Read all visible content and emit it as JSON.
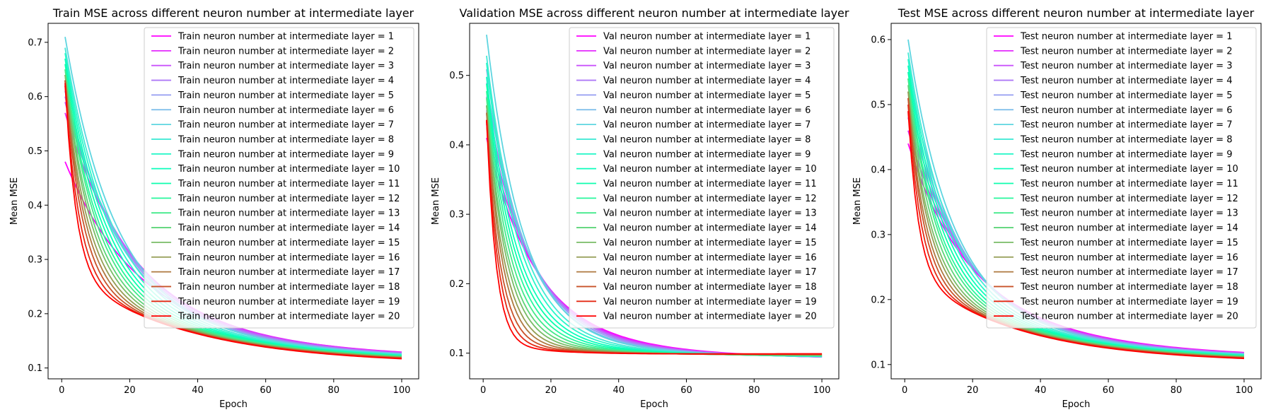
{
  "chart_data": [
    {
      "type": "line",
      "title": "Train MSE across different neuron number at intermediate layer",
      "xlabel": "Epoch",
      "ylabel": "Mean MSE",
      "xlim": [
        -4,
        105
      ],
      "ylim": [
        0.08,
        0.735
      ],
      "xticks": [
        0,
        20,
        40,
        60,
        80,
        100
      ],
      "yticks": [
        0.1,
        0.2,
        0.3,
        0.4,
        0.5,
        0.6,
        0.7
      ],
      "legend_position": "top-right",
      "legend_prefix": "Train",
      "shape": {
        "initial": [
          0.48,
          0.57,
          0.59,
          0.6,
          0.61,
          0.62,
          0.71,
          0.69,
          0.68,
          0.67,
          0.66,
          0.65,
          0.65,
          0.64,
          0.64,
          0.63,
          0.63,
          0.63,
          0.62,
          0.625
        ],
        "tau_first": 18,
        "tau_last": 3.2,
        "mid_first": 0.16,
        "mid_last": 0.17,
        "tau2_first": 40,
        "tau2_last": 35,
        "final_first": 0.115,
        "final_last": 0.107,
        "bump": 0
      }
    },
    {
      "type": "line",
      "title": "Validation MSE across different neuron number at intermediate layer",
      "xlabel": "Epoch",
      "ylabel": "Mean MSE",
      "xlim": [
        -4,
        105
      ],
      "ylim": [
        0.063,
        0.575
      ],
      "xticks": [
        0,
        20,
        40,
        60,
        80,
        100
      ],
      "yticks": [
        0.1,
        0.2,
        0.3,
        0.4,
        0.5
      ],
      "legend_position": "top-right",
      "legend_prefix": "Val",
      "shape": {
        "initial": [
          0.41,
          0.43,
          0.45,
          0.47,
          0.49,
          0.51,
          0.56,
          0.53,
          0.52,
          0.5,
          0.49,
          0.48,
          0.47,
          0.46,
          0.46,
          0.45,
          0.45,
          0.44,
          0.44,
          0.44
        ],
        "tau_first": 14,
        "tau_last": 2.8,
        "mid_first": 0.05,
        "mid_last": 0.03,
        "tau2_first": 40,
        "tau2_last": 20,
        "final_first": 0.09,
        "final_last": 0.089,
        "bump": 0.015
      }
    },
    {
      "type": "line",
      "title": "Test MSE across different neuron number at intermediate layer",
      "xlabel": "Epoch",
      "ylabel": "Mean MSE",
      "xlim": [
        -4,
        105
      ],
      "ylim": [
        0.078,
        0.625
      ],
      "xticks": [
        0,
        20,
        40,
        60,
        80,
        100
      ],
      "yticks": [
        0.1,
        0.2,
        0.3,
        0.4,
        0.5,
        0.6
      ],
      "legend_position": "top-right",
      "legend_prefix": "Test",
      "shape": {
        "initial": [
          0.44,
          0.46,
          0.48,
          0.5,
          0.52,
          0.55,
          0.6,
          0.58,
          0.57,
          0.56,
          0.55,
          0.54,
          0.54,
          0.53,
          0.52,
          0.52,
          0.51,
          0.51,
          0.5,
          0.49
        ],
        "tau_first": 16,
        "tau_last": 3.0,
        "mid_first": 0.12,
        "mid_last": 0.14,
        "tau2_first": 40,
        "tau2_last": 32,
        "final_first": 0.108,
        "final_last": 0.103,
        "bump": 0
      }
    }
  ],
  "series_label_template": "neuron number at intermediate layer = ",
  "series_count": 20
}
